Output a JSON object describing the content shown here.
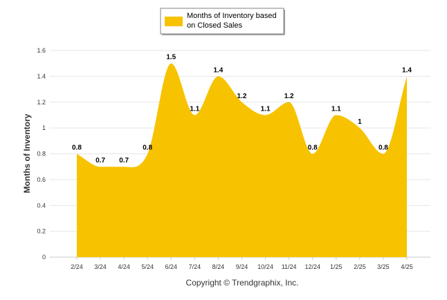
{
  "chart_data": {
    "type": "area",
    "ylabel": "Months of Inventory",
    "xlabel": "",
    "ylim": [
      0,
      1.6
    ],
    "yticks": [
      "0",
      "0.2",
      "0.4",
      "0.6",
      "0.8",
      "1",
      "1.2",
      "1.4",
      "1.6"
    ],
    "categories": [
      "2/24",
      "3/24",
      "4/24",
      "5/24",
      "6/24",
      "7/24",
      "8/24",
      "9/24",
      "10/24",
      "11/24",
      "12/24",
      "1/25",
      "2/25",
      "3/25",
      "4/25"
    ],
    "series": [
      {
        "name": "Months of Inventory based on Closed Sales",
        "values": [
          0.8,
          0.7,
          0.7,
          0.8,
          1.5,
          1.1,
          1.4,
          1.2,
          1.1,
          1.2,
          0.8,
          1.1,
          1.0,
          0.8,
          1.4
        ],
        "labels": [
          "0.8",
          "0.7",
          "0.7",
          "0.8",
          "1.5",
          "1.1",
          "1.4",
          "1.2",
          "1.1",
          "1.2",
          "0.8",
          "1.1",
          "1",
          "0.8",
          "1.4"
        ],
        "color": "#F7C300"
      }
    ],
    "legend": {
      "position": "top-center",
      "lines": [
        "Months of Inventory based",
        "on Closed Sales"
      ]
    },
    "grid": true
  },
  "footer": {
    "copyright": "Copyright © Trendgraphix, Inc."
  }
}
